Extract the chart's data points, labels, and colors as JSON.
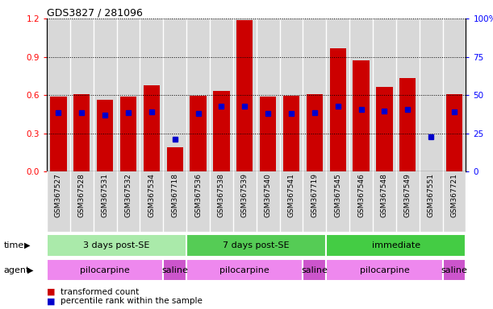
{
  "title": "GDS3827 / 281096",
  "samples": [
    "GSM367527",
    "GSM367528",
    "GSM367531",
    "GSM367532",
    "GSM367534",
    "GSM367718",
    "GSM367536",
    "GSM367538",
    "GSM367539",
    "GSM367540",
    "GSM367541",
    "GSM367719",
    "GSM367545",
    "GSM367546",
    "GSM367548",
    "GSM367549",
    "GSM367551",
    "GSM367721"
  ],
  "red_values": [
    0.585,
    0.605,
    0.565,
    0.585,
    0.675,
    0.19,
    0.595,
    0.635,
    1.19,
    0.59,
    0.595,
    0.605,
    0.965,
    0.875,
    0.665,
    0.73,
    0.0,
    0.605
  ],
  "blue_values": [
    0.46,
    0.46,
    0.44,
    0.46,
    0.47,
    0.255,
    0.455,
    0.515,
    0.515,
    0.455,
    0.455,
    0.46,
    0.51,
    0.49,
    0.475,
    0.485,
    0.27,
    0.47
  ],
  "time_groups": [
    {
      "label": "3 days post-SE",
      "start": 0,
      "end": 5,
      "color": "#aaeaaa"
    },
    {
      "label": "7 days post-SE",
      "start": 6,
      "end": 11,
      "color": "#55cc55"
    },
    {
      "label": "immediate",
      "start": 12,
      "end": 17,
      "color": "#44cc44"
    }
  ],
  "agent_groups": [
    {
      "label": "pilocarpine",
      "start": 0,
      "end": 4,
      "color": "#ee88ee"
    },
    {
      "label": "saline",
      "start": 5,
      "end": 5,
      "color": "#cc55cc"
    },
    {
      "label": "pilocarpine",
      "start": 6,
      "end": 10,
      "color": "#ee88ee"
    },
    {
      "label": "saline",
      "start": 11,
      "end": 11,
      "color": "#cc55cc"
    },
    {
      "label": "pilocarpine",
      "start": 12,
      "end": 16,
      "color": "#ee88ee"
    },
    {
      "label": "saline",
      "start": 17,
      "end": 17,
      "color": "#cc55cc"
    }
  ],
  "ylim_left": [
    0,
    1.2
  ],
  "ylim_right": [
    0,
    100
  ],
  "yticks_left": [
    0,
    0.3,
    0.6,
    0.9,
    1.2
  ],
  "yticks_right": [
    0,
    25,
    50,
    75,
    100
  ],
  "bar_color": "#cc0000",
  "blue_color": "#0000cc",
  "col_bg_color": "#d8d8d8",
  "legend_red": "transformed count",
  "legend_blue": "percentile rank within the sample",
  "time_label": "time",
  "agent_label": "agent"
}
